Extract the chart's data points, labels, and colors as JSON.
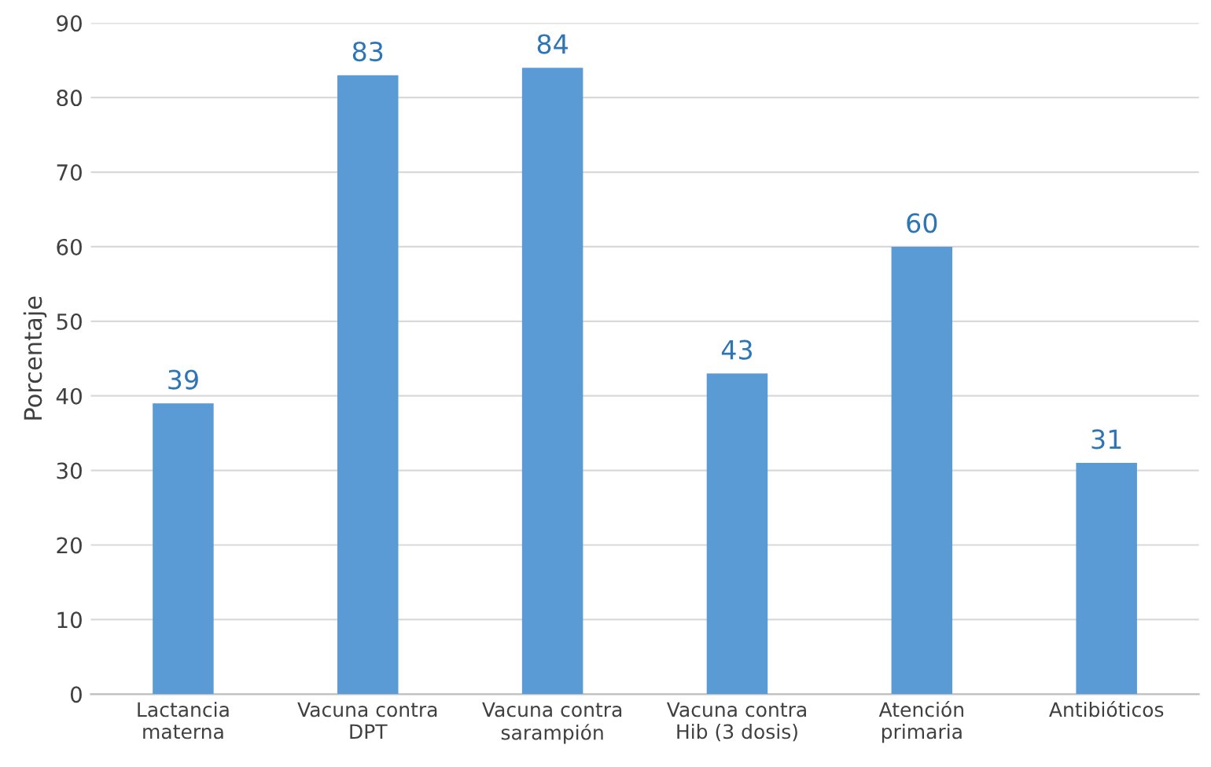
{
  "chart_data": {
    "type": "bar",
    "ylabel": "Porcentaje",
    "categories": [
      "Lactancia\nmaterna",
      "Vacuna contra\nDPT",
      "Vacuna contra\nsarampión",
      "Vacuna contra\nHib (3 dosis)",
      "Atención\nprimaria",
      "Antibióticos"
    ],
    "values": [
      39,
      83,
      84,
      43,
      60,
      31
    ],
    "color": "#5b9bd5",
    "ylim": [
      0,
      90
    ],
    "yticks": [
      0,
      10,
      20,
      30,
      40,
      50,
      60,
      70,
      80,
      90
    ],
    "grid": "y",
    "data_labels": true
  }
}
